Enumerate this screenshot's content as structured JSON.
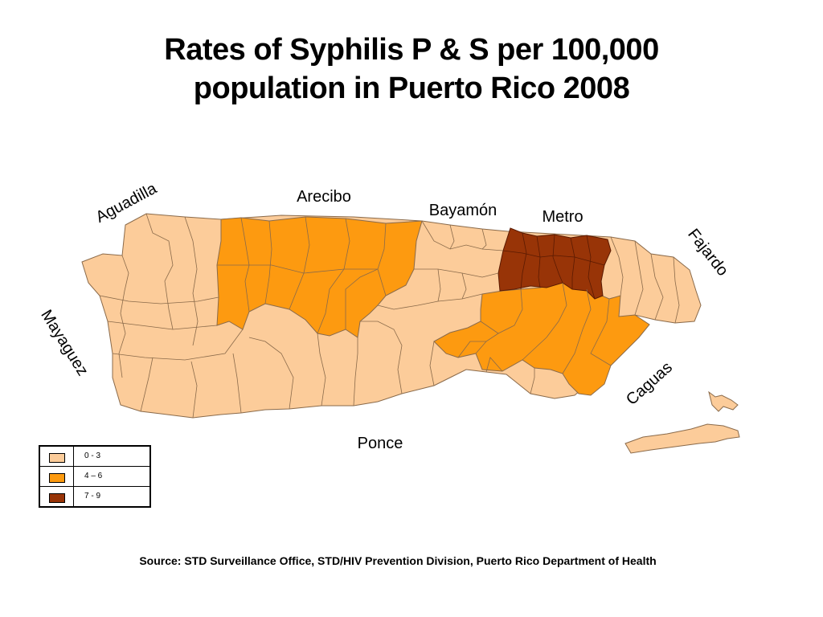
{
  "title_line1": "Rates of Syphilis P & S per 100,000",
  "title_line2": "population in Puerto Rico 2008",
  "regions": {
    "aguadilla": "Aguadilla",
    "arecibo": "Arecibo",
    "bayamon": "Bayamón",
    "metro": "Metro",
    "fajardo": "Fajardo",
    "mayaguez": "Mayaguez",
    "caguas": "Caguas",
    "ponce": "Ponce"
  },
  "legend": [
    {
      "label": "0 - 3",
      "color": "#fccc9a"
    },
    {
      "label": "4 – 6",
      "color": "#fd9a10"
    },
    {
      "label": "7 - 9",
      "color": "#983407"
    }
  ],
  "colors": {
    "low": "#fccc9a",
    "mid": "#fd9a10",
    "high": "#983407",
    "border": "#8a6a4a"
  },
  "source": "Source: STD Surveillance Office, STD/HIV Prevention Division, Puerto Rico Department of Health"
}
